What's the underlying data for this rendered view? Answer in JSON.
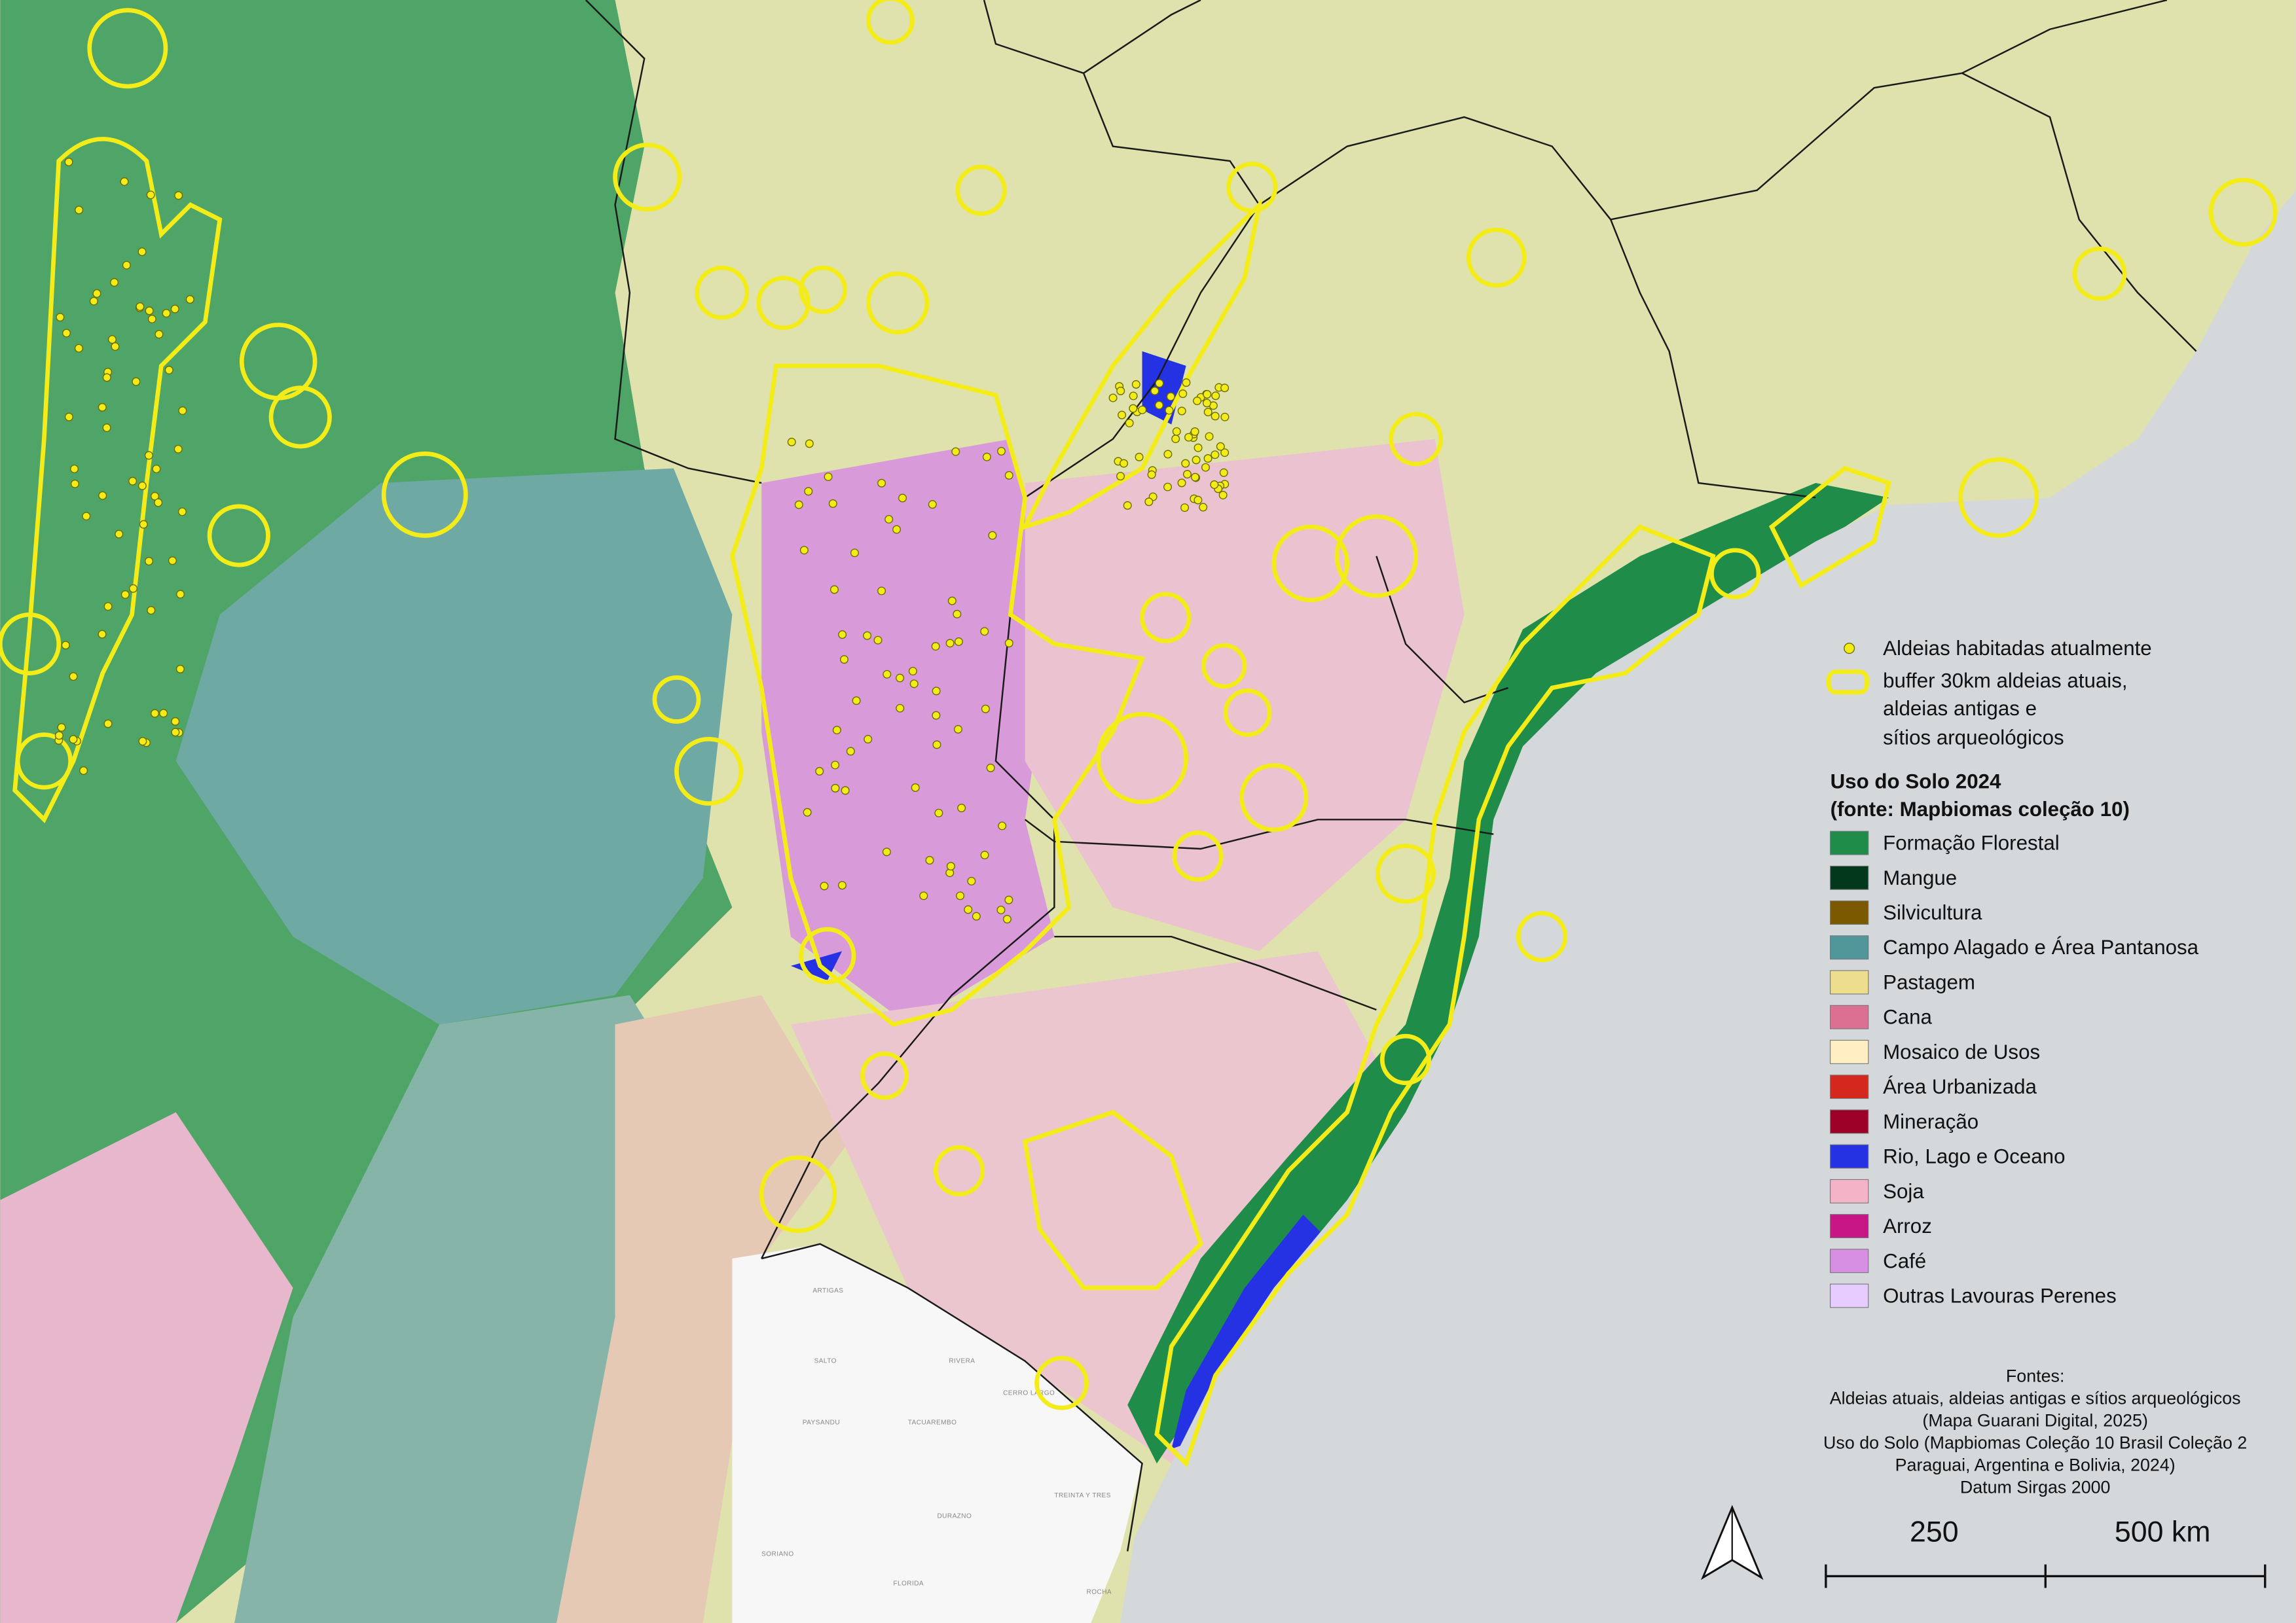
{
  "legend": {
    "points": "Aldeias habitadas atualmente",
    "buffer_lines": [
      "buffer 30km aldeias atuais,",
      "aldeias antigas e",
      "sítios arqueológicos"
    ],
    "title_lines": [
      "Uso do Solo 2024",
      "(fonte: Mapbiomas coleção 10)"
    ],
    "items": [
      {
        "label": "Formação Florestal",
        "color": "#1f8d49"
      },
      {
        "label": "Mangue",
        "color": "#04381d"
      },
      {
        "label": "Silvicultura",
        "color": "#7a5900"
      },
      {
        "label": "Campo Alagado e Área Pantanosa",
        "color": "#519799"
      },
      {
        "label": "Pastagem",
        "color": "#edde8e"
      },
      {
        "label": "Cana",
        "color": "#db7093"
      },
      {
        "label": "Mosaico de Usos",
        "color": "#ffefc3"
      },
      {
        "label": "Área Urbanizada",
        "color": "#d4271e"
      },
      {
        "label": "Mineração",
        "color": "#9c0027"
      },
      {
        "label": "Rio, Lago e Oceano",
        "color": "#2532e4"
      },
      {
        "label": "Soja",
        "color": "#f5b3c8"
      },
      {
        "label": "Arroz",
        "color": "#c71585"
      },
      {
        "label": "Café",
        "color": "#d68fe2"
      },
      {
        "label": "Outras Lavouras Perenes",
        "color": "#e6ccff"
      }
    ]
  },
  "sources": [
    "Fontes:",
    "Aldeias atuais, aldeias antigas e sítios arqueológicos",
    "(Mapa Guarani Digital, 2025)",
    "Uso do Solo (Mapbiomas Coleção 10 Brasil Coleção 2",
    "Paraguai, Argentina e Bolivia, 2024)",
    "Datum Sirgas 2000"
  ],
  "scale_bar": {
    "labels": [
      "250",
      "500 km"
    ]
  },
  "basemap_labels": [
    "ARTIGAS",
    "SALTO",
    "RIVERA",
    "PAYSANDU",
    "TACUAREMBO",
    "CERRO LARGO",
    "DURAZNO",
    "TREINTA Y TRES",
    "SORIANO",
    "FLORIDA",
    "ROCHA"
  ]
}
